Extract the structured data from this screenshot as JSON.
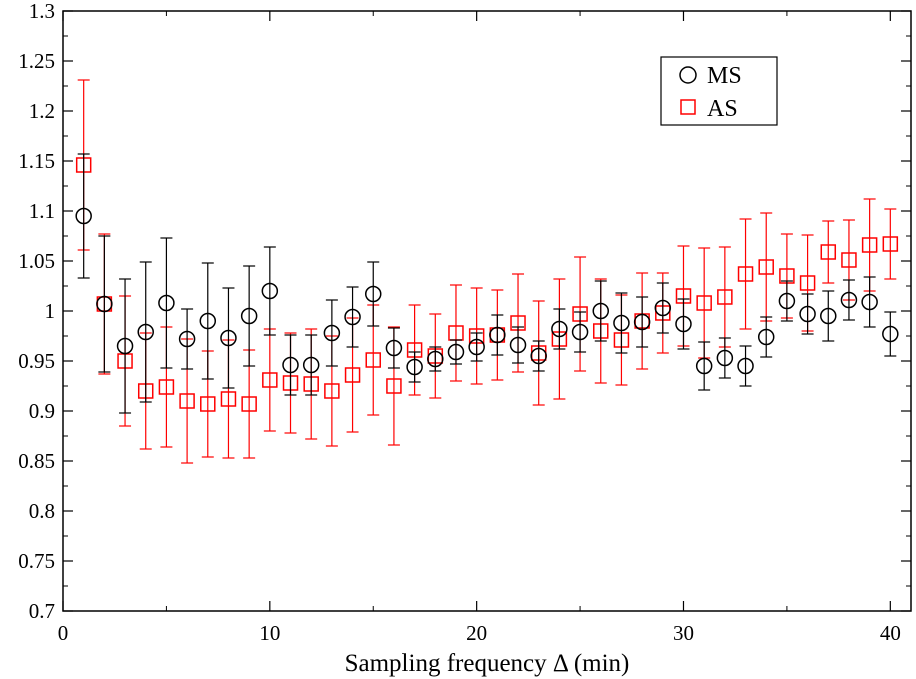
{
  "chart_data": {
    "type": "scatter",
    "title": "",
    "xlabel": "Sampling frequency Δ  (min)",
    "ylabel": "",
    "xlim": [
      0,
      41
    ],
    "ylim": [
      0.7,
      1.3
    ],
    "xticks": [
      0,
      10,
      20,
      30,
      40
    ],
    "yticks": [
      0.7,
      0.75,
      0.8,
      0.85,
      0.9,
      0.95,
      1,
      1.05,
      1.1,
      1.15,
      1.2,
      1.25,
      1.3
    ],
    "xtick_labels": [
      "0",
      "10",
      "20",
      "30",
      "40"
    ],
    "ytick_labels": [
      "0.7",
      "0.75",
      "0.8",
      "0.85",
      "0.9",
      "0.95",
      "1",
      "1.05",
      "1.1",
      "1.15",
      "1.2",
      "1.25",
      "1.3"
    ],
    "grid": false,
    "legend": {
      "position": "top-right",
      "entries": [
        "MS",
        "AS"
      ]
    },
    "series": [
      {
        "name": "MS",
        "marker": "circle",
        "color": "#000000",
        "x": [
          1,
          2,
          3,
          4,
          5,
          6,
          7,
          8,
          9,
          10,
          11,
          12,
          13,
          14,
          15,
          16,
          17,
          18,
          19,
          20,
          21,
          22,
          23,
          24,
          25,
          26,
          27,
          28,
          29,
          30,
          31,
          32,
          33,
          34,
          35,
          36,
          37,
          38,
          39,
          40
        ],
        "y": [
          1.095,
          1.007,
          0.965,
          0.979,
          1.008,
          0.972,
          0.99,
          0.973,
          0.995,
          1.02,
          0.946,
          0.946,
          0.978,
          0.994,
          1.017,
          0.963,
          0.944,
          0.952,
          0.959,
          0.964,
          0.976,
          0.966,
          0.955,
          0.982,
          0.979,
          1.0,
          0.988,
          0.989,
          1.003,
          0.987,
          0.945,
          0.953,
          0.945,
          0.974,
          1.01,
          0.997,
          0.995,
          1.011,
          1.009,
          0.977
        ],
        "err": [
          0.062,
          0.068,
          0.067,
          0.07,
          0.065,
          0.03,
          0.058,
          0.05,
          0.05,
          0.044,
          0.03,
          0.03,
          0.033,
          0.03,
          0.032,
          0.02,
          0.015,
          0.012,
          0.012,
          0.014,
          0.02,
          0.018,
          0.015,
          0.02,
          0.02,
          0.03,
          0.03,
          0.025,
          0.025,
          0.025,
          0.024,
          0.02,
          0.02,
          0.02,
          0.02,
          0.02,
          0.025,
          0.02,
          0.025,
          0.022
        ]
      },
      {
        "name": "AS",
        "marker": "square",
        "color": "#ff0000",
        "x": [
          1,
          2,
          3,
          4,
          5,
          6,
          7,
          8,
          9,
          10,
          11,
          12,
          13,
          14,
          15,
          16,
          17,
          18,
          19,
          20,
          21,
          22,
          23,
          24,
          25,
          26,
          27,
          28,
          29,
          30,
          31,
          32,
          33,
          34,
          35,
          36,
          37,
          38,
          39,
          40
        ],
        "y": [
          1.146,
          1.007,
          0.95,
          0.92,
          0.924,
          0.91,
          0.907,
          0.912,
          0.907,
          0.931,
          0.928,
          0.927,
          0.92,
          0.936,
          0.951,
          0.925,
          0.961,
          0.955,
          0.978,
          0.975,
          0.976,
          0.988,
          0.958,
          0.972,
          0.997,
          0.98,
          0.971,
          0.99,
          0.998,
          1.015,
          1.008,
          1.014,
          1.037,
          1.044,
          1.035,
          1.028,
          1.059,
          1.051,
          1.066,
          1.067
        ],
        "err": [
          0.085,
          0.07,
          0.065,
          0.058,
          0.06,
          0.062,
          0.053,
          0.059,
          0.054,
          0.051,
          0.05,
          0.055,
          0.055,
          0.057,
          0.055,
          0.059,
          0.045,
          0.042,
          0.048,
          0.048,
          0.045,
          0.049,
          0.052,
          0.06,
          0.057,
          0.052,
          0.045,
          0.048,
          0.04,
          0.05,
          0.055,
          0.05,
          0.055,
          0.054,
          0.042,
          0.048,
          0.031,
          0.04,
          0.046,
          0.035
        ]
      }
    ]
  }
}
